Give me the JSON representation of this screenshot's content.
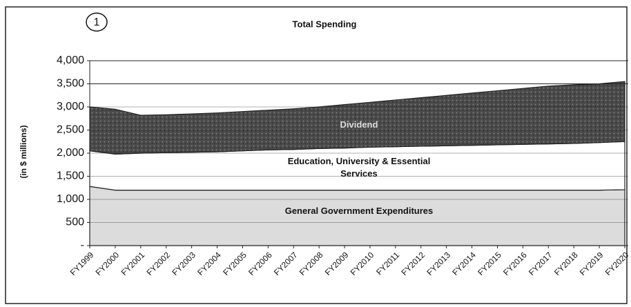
{
  "annotation": "1",
  "chart_data": {
    "type": "stacked_area",
    "title": "Total Spending",
    "y_label": "(in $ millions)",
    "categories": [
      "FY1999",
      "FY2000",
      "FY2001",
      "FY2002",
      "FY2003",
      "FY2004",
      "FY2005",
      "FY2006",
      "FY2007",
      "FY2008",
      "FY2009",
      "FY2010",
      "FY2011",
      "FY2012",
      "FY2013",
      "FY2014",
      "FY2015",
      "FY2016",
      "FY2017",
      "FY2018",
      "FY2019",
      "FY2020"
    ],
    "series": [
      {
        "name": "General Government Expenditures",
        "color": "#dcdcdc",
        "values": [
          1280,
          1200,
          1200,
          1200,
          1200,
          1200,
          1200,
          1200,
          1200,
          1200,
          1200,
          1200,
          1200,
          1200,
          1200,
          1200,
          1200,
          1200,
          1200,
          1200,
          1200,
          1210
        ]
      },
      {
        "name": "Education, University & Essential Services",
        "color": "#ffffff",
        "values": [
          770,
          780,
          800,
          810,
          820,
          830,
          850,
          870,
          880,
          900,
          910,
          930,
          940,
          950,
          960,
          970,
          980,
          990,
          1000,
          1010,
          1030,
          1040
        ]
      },
      {
        "name": "Dividend",
        "color": "#4a4a4a",
        "values": [
          950,
          970,
          820,
          820,
          830,
          840,
          850,
          860,
          880,
          900,
          940,
          970,
          1010,
          1050,
          1090,
          1130,
          1170,
          1210,
          1250,
          1270,
          1270,
          1300
        ]
      }
    ],
    "ylim": [
      0,
      4000
    ],
    "yticks": [
      {
        "value": 0,
        "label": "-"
      },
      {
        "value": 500,
        "label": "500"
      },
      {
        "value": 1000,
        "label": "1,000"
      },
      {
        "value": 1500,
        "label": "1,500"
      },
      {
        "value": 2000,
        "label": "2,000"
      },
      {
        "value": 2500,
        "label": "2,500"
      },
      {
        "value": 3000,
        "label": "3,000"
      },
      {
        "value": 3500,
        "label": "3,500"
      },
      {
        "value": 4000,
        "label": "4,000"
      }
    ],
    "grid": true
  }
}
